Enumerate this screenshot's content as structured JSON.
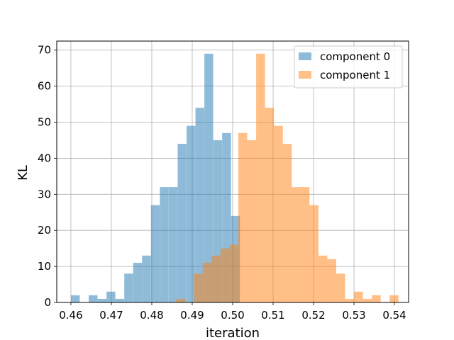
{
  "chart_data": {
    "type": "bar",
    "subtype": "overlapping-histogram",
    "xlabel": "iteration",
    "ylabel": "KL",
    "xlim": [
      0.4565,
      0.5435
    ],
    "ylim": [
      0,
      72.5
    ],
    "xticks": [
      "0.46",
      "0.47",
      "0.48",
      "0.49",
      "0.50",
      "0.51",
      "0.52",
      "0.53",
      "0.54"
    ],
    "yticks": [
      "0",
      "10",
      "20",
      "30",
      "40",
      "50",
      "60",
      "70"
    ],
    "grid": true,
    "legend": "top-right",
    "series": [
      {
        "name": "component 0",
        "color": "#1f77b4",
        "alpha": 0.5,
        "bin_width": 0.00218,
        "bins": [
          [
            0.46,
            2
          ],
          [
            0.4622,
            0
          ],
          [
            0.4644,
            2
          ],
          [
            0.4666,
            1
          ],
          [
            0.4688,
            3
          ],
          [
            0.471,
            1
          ],
          [
            0.4732,
            8
          ],
          [
            0.4754,
            11
          ],
          [
            0.4776,
            13
          ],
          [
            0.4798,
            27
          ],
          [
            0.482,
            32
          ],
          [
            0.4842,
            32
          ],
          [
            0.4864,
            44
          ],
          [
            0.4886,
            49
          ],
          [
            0.4908,
            54
          ],
          [
            0.493,
            69
          ],
          [
            0.4952,
            45
          ],
          [
            0.4974,
            47
          ],
          [
            0.4996,
            24
          ]
        ]
      },
      {
        "name": "component 1",
        "color": "#ff7f0e",
        "alpha": 0.5,
        "bin_width": 0.0022,
        "bins": [
          [
            0.486,
            1
          ],
          [
            0.4882,
            0
          ],
          [
            0.4904,
            8
          ],
          [
            0.4926,
            11
          ],
          [
            0.4948,
            13
          ],
          [
            0.497,
            15
          ],
          [
            0.4992,
            16
          ],
          [
            0.5014,
            47
          ],
          [
            0.5036,
            45
          ],
          [
            0.5058,
            69
          ],
          [
            0.508,
            54
          ],
          [
            0.5102,
            49
          ],
          [
            0.5124,
            44
          ],
          [
            0.5146,
            32
          ],
          [
            0.5168,
            32
          ],
          [
            0.519,
            27
          ],
          [
            0.5212,
            13
          ],
          [
            0.5234,
            12
          ],
          [
            0.5256,
            8
          ],
          [
            0.5278,
            1
          ],
          [
            0.53,
            3
          ],
          [
            0.5322,
            1
          ],
          [
            0.5344,
            2
          ],
          [
            0.5366,
            0
          ],
          [
            0.5388,
            2
          ]
        ]
      }
    ]
  }
}
